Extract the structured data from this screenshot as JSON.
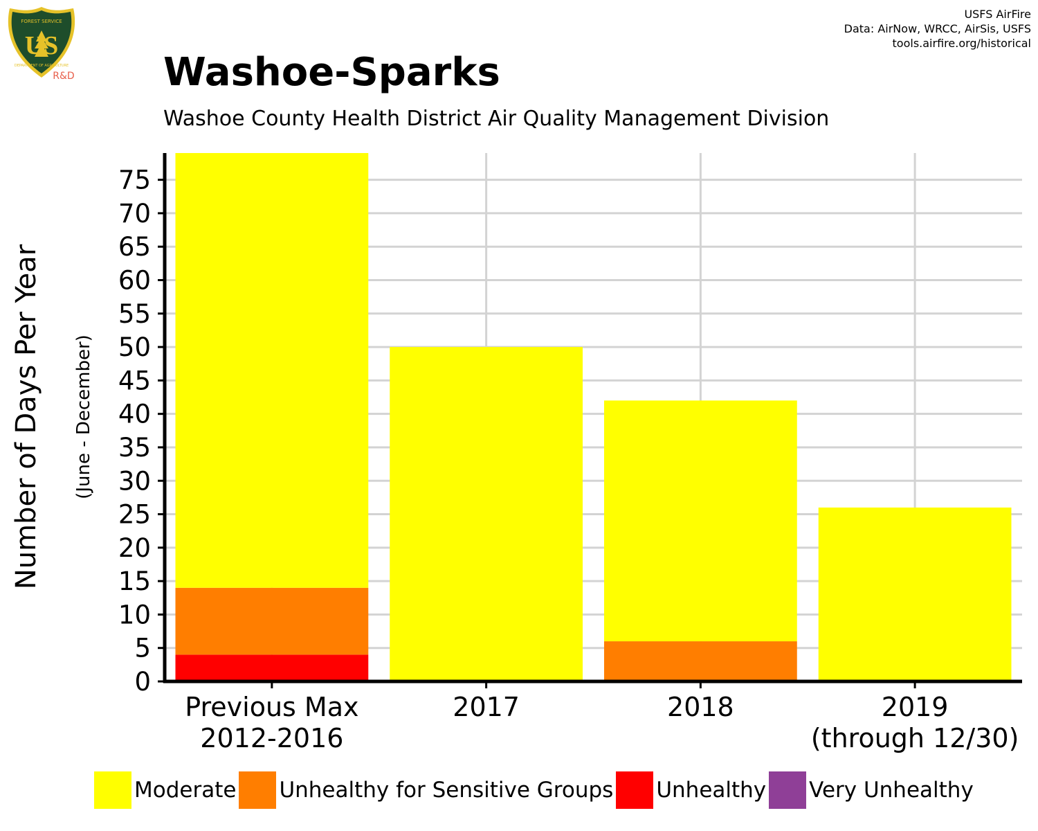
{
  "logo": {
    "top_text": "FOREST SERVICE",
    "main_text": "US",
    "bottom_text": "DEPARTMENT OF AGRICULTURE",
    "tag": "R&D",
    "colors": {
      "shield": "#1e4d2b",
      "gold": "#e6c229",
      "tag": "#e8604c"
    }
  },
  "credits": [
    "USFS AirFire",
    "Data: AirNow, WRCC, AirSis, USFS",
    "tools.airfire.org/historical"
  ],
  "chart_data": {
    "type": "bar",
    "stacked": true,
    "title": "Washoe-Sparks",
    "subtitle": "Washoe County Health District Air Quality Management Division",
    "ylabel": "Number of Days Per Year",
    "ylabel_sub": "(June - December)",
    "xlabel": "",
    "categories": [
      {
        "line1": "Previous Max",
        "line2": "2012-2016"
      },
      {
        "line1": "2017",
        "line2": ""
      },
      {
        "line1": "2018",
        "line2": ""
      },
      {
        "line1": "2019",
        "line2": "(through 12/30)"
      }
    ],
    "series": [
      {
        "name": "Moderate",
        "color": "#ffff00",
        "values": [
          65,
          50,
          36,
          26
        ]
      },
      {
        "name": "Unhealthy for Sensitive Groups",
        "color": "#ff7e00",
        "values": [
          10,
          0,
          6,
          0
        ]
      },
      {
        "name": "Unhealthy",
        "color": "#ff0000",
        "values": [
          4,
          0,
          0,
          0
        ]
      },
      {
        "name": "Very Unhealthy",
        "color": "#8f3f97",
        "values": [
          0,
          0,
          0,
          0
        ]
      }
    ],
    "stack_order": [
      "Unhealthy",
      "Unhealthy for Sensitive Groups",
      "Moderate"
    ],
    "yticks": [
      0,
      5,
      10,
      15,
      20,
      25,
      30,
      35,
      40,
      45,
      50,
      55,
      60,
      65,
      70,
      75
    ],
    "ylim": [
      0,
      79
    ],
    "grid": true,
    "legend_position": "bottom"
  }
}
